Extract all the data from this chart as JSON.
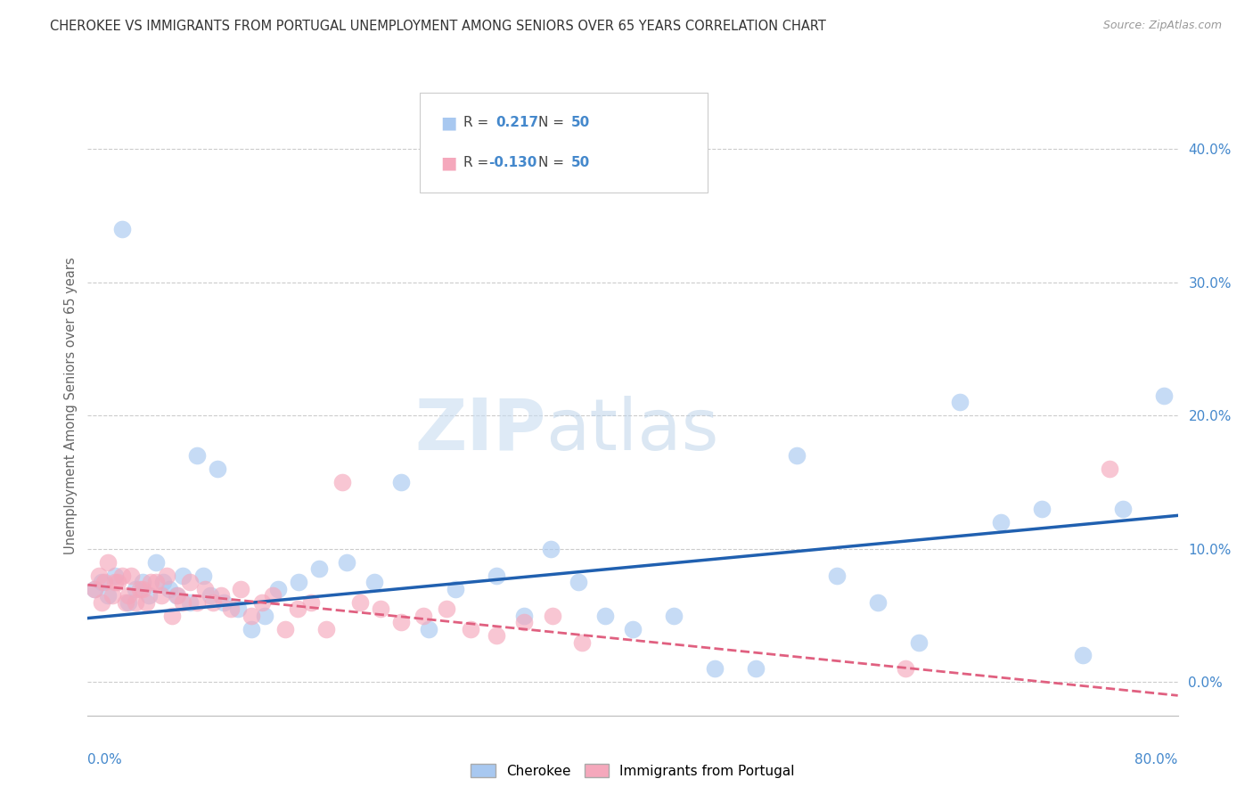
{
  "title": "CHEROKEE VS IMMIGRANTS FROM PORTUGAL UNEMPLOYMENT AMONG SENIORS OVER 65 YEARS CORRELATION CHART",
  "source": "Source: ZipAtlas.com",
  "ylabel": "Unemployment Among Seniors over 65 years",
  "watermark": "ZIPatlas",
  "legend_label1": "Cherokee",
  "legend_label2": "Immigrants from Portugal",
  "color_blue": "#A8C8F0",
  "color_pink": "#F5A8BC",
  "color_blue_line": "#2060B0",
  "color_pink_line": "#E06080",
  "color_axis_label": "#4488CC",
  "color_title": "#333333",
  "ytick_labels": [
    "0.0%",
    "10.0%",
    "20.0%",
    "30.0%",
    "40.0%"
  ],
  "ytick_values": [
    0.0,
    0.1,
    0.2,
    0.3,
    0.4
  ],
  "xlim": [
    0.0,
    0.8
  ],
  "ylim": [
    -0.025,
    0.44
  ],
  "cherokee_x": [
    0.005,
    0.01,
    0.015,
    0.02,
    0.025,
    0.03,
    0.035,
    0.04,
    0.045,
    0.05,
    0.055,
    0.06,
    0.065,
    0.07,
    0.075,
    0.08,
    0.085,
    0.09,
    0.095,
    0.1,
    0.11,
    0.12,
    0.13,
    0.14,
    0.155,
    0.17,
    0.19,
    0.21,
    0.23,
    0.25,
    0.27,
    0.3,
    0.32,
    0.34,
    0.36,
    0.38,
    0.4,
    0.43,
    0.46,
    0.49,
    0.52,
    0.55,
    0.58,
    0.61,
    0.64,
    0.67,
    0.7,
    0.73,
    0.76,
    0.79
  ],
  "cherokee_y": [
    0.07,
    0.075,
    0.065,
    0.08,
    0.34,
    0.06,
    0.07,
    0.075,
    0.065,
    0.09,
    0.075,
    0.07,
    0.065,
    0.08,
    0.06,
    0.17,
    0.08,
    0.065,
    0.16,
    0.06,
    0.055,
    0.04,
    0.05,
    0.07,
    0.075,
    0.085,
    0.09,
    0.075,
    0.15,
    0.04,
    0.07,
    0.08,
    0.05,
    0.1,
    0.075,
    0.05,
    0.04,
    0.05,
    0.01,
    0.01,
    0.17,
    0.08,
    0.06,
    0.03,
    0.21,
    0.12,
    0.13,
    0.02,
    0.13,
    0.215
  ],
  "portugal_x": [
    0.005,
    0.008,
    0.01,
    0.012,
    0.015,
    0.018,
    0.02,
    0.022,
    0.025,
    0.028,
    0.03,
    0.032,
    0.035,
    0.038,
    0.04,
    0.043,
    0.046,
    0.05,
    0.054,
    0.058,
    0.062,
    0.066,
    0.07,
    0.075,
    0.08,
    0.086,
    0.092,
    0.098,
    0.105,
    0.112,
    0.12,
    0.128,
    0.136,
    0.145,
    0.154,
    0.164,
    0.175,
    0.187,
    0.2,
    0.215,
    0.23,
    0.246,
    0.263,
    0.281,
    0.3,
    0.32,
    0.341,
    0.363,
    0.6,
    0.75
  ],
  "portugal_y": [
    0.07,
    0.08,
    0.06,
    0.075,
    0.09,
    0.065,
    0.075,
    0.075,
    0.08,
    0.06,
    0.065,
    0.08,
    0.06,
    0.07,
    0.07,
    0.06,
    0.075,
    0.075,
    0.065,
    0.08,
    0.05,
    0.065,
    0.06,
    0.075,
    0.06,
    0.07,
    0.06,
    0.065,
    0.055,
    0.07,
    0.05,
    0.06,
    0.065,
    0.04,
    0.055,
    0.06,
    0.04,
    0.15,
    0.06,
    0.055,
    0.045,
    0.05,
    0.055,
    0.04,
    0.035,
    0.045,
    0.05,
    0.03,
    0.01,
    0.16
  ],
  "blue_line_y0": 0.048,
  "blue_line_y1": 0.125,
  "pink_line_y0": 0.073,
  "pink_line_y1": -0.01
}
